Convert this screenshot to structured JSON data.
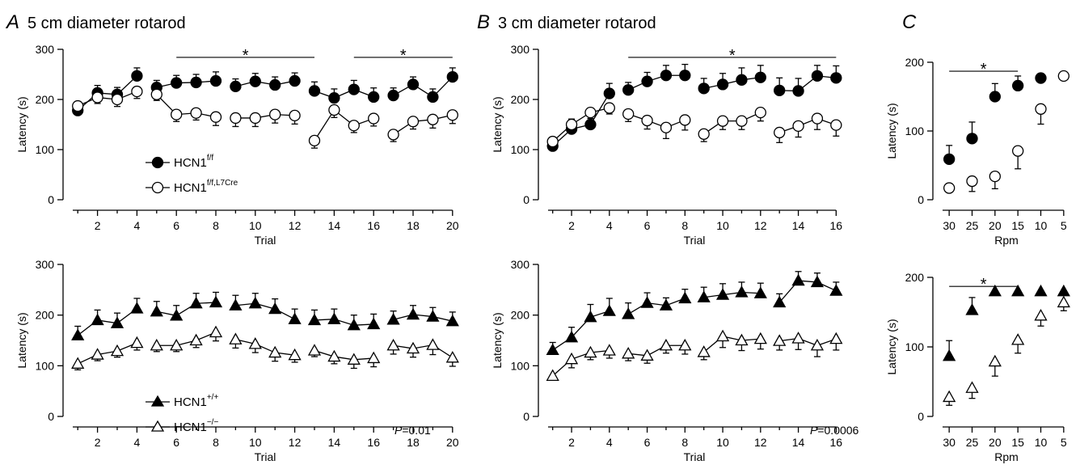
{
  "panels": {
    "A": {
      "letter": "A",
      "title": "5 cm diameter rotarod"
    },
    "B": {
      "letter": "B",
      "title": "3 cm diameter rotarod"
    },
    "C": {
      "letter": "C"
    }
  },
  "legend_top": {
    "s1": {
      "name": "HCN1",
      "sup": "f/f"
    },
    "s2": {
      "name": "HCN1",
      "sup": "f/f,L7Cre"
    }
  },
  "legend_bottom": {
    "s1": {
      "name": "HCN1",
      "sup": "+/+"
    },
    "s2": {
      "name": "HCN1",
      "sup": "−/−"
    }
  },
  "pvalues": {
    "A_bottom": {
      "label": "P",
      "value": "=0.01"
    },
    "B_bottom": {
      "label": "P",
      "value": "=0.0006"
    }
  },
  "chart_data": [
    {
      "id": "A_top",
      "type": "line",
      "xlabel": "Trial",
      "ylabel": "Latency (s)",
      "xlim": [
        0.5,
        20.5
      ],
      "ylim": [
        0,
        300
      ],
      "xticks": [
        2,
        4,
        6,
        8,
        10,
        12,
        14,
        16,
        18,
        20
      ],
      "xticklabels": [
        "2",
        "4",
        "6",
        "8",
        "10",
        "12",
        "14",
        "16",
        "18",
        "20"
      ],
      "yticks": [
        0,
        100,
        200,
        300
      ],
      "yticklabels": [
        "0",
        "100",
        "200",
        "300"
      ],
      "segments": [
        [
          1,
          4
        ],
        [
          5,
          8
        ],
        [
          9,
          12
        ],
        [
          13,
          16
        ],
        [
          17,
          20
        ]
      ],
      "series": [
        {
          "marker": "circle",
          "filled": true,
          "y": [
            178,
            213,
            210,
            247,
            224,
            233,
            234,
            237,
            226,
            236,
            229,
            237,
            217,
            203,
            220,
            205,
            208,
            230,
            205,
            245
          ],
          "err": [
            13,
            15,
            14,
            16,
            14,
            15,
            16,
            18,
            15,
            16,
            16,
            16,
            18,
            18,
            18,
            18,
            15,
            15,
            16,
            18
          ]
        },
        {
          "marker": "circle",
          "filled": false,
          "y": [
            187,
            204,
            200,
            216,
            210,
            170,
            173,
            165,
            163,
            163,
            170,
            168,
            118,
            179,
            148,
            162,
            130,
            156,
            160,
            169
          ],
          "err": [
            12,
            12,
            14,
            14,
            12,
            14,
            14,
            17,
            17,
            17,
            17,
            17,
            15,
            15,
            14,
            15,
            14,
            15,
            17,
            17
          ]
        }
      ],
      "significance": [
        {
          "from": 6,
          "to": 13,
          "y": 284,
          "label": "*"
        },
        {
          "from": 15,
          "to": 20,
          "y": 284,
          "label": "*"
        }
      ]
    },
    {
      "id": "A_bottom",
      "type": "line",
      "xlabel": "Trial",
      "ylabel": "Latency (s)",
      "xlim": [
        0.5,
        20.5
      ],
      "ylim": [
        0,
        300
      ],
      "xticks": [
        2,
        4,
        6,
        8,
        10,
        12,
        14,
        16,
        18,
        20
      ],
      "xticklabels": [
        "2",
        "4",
        "6",
        "8",
        "10",
        "12",
        "14",
        "16",
        "18",
        "20"
      ],
      "yticks": [
        0,
        100,
        200,
        300
      ],
      "yticklabels": [
        "0",
        "100",
        "200",
        "300"
      ],
      "segments": [
        [
          1,
          4
        ],
        [
          5,
          8
        ],
        [
          9,
          12
        ],
        [
          13,
          16
        ],
        [
          17,
          20
        ]
      ],
      "series": [
        {
          "marker": "triangle",
          "filled": true,
          "y": [
            160,
            190,
            184,
            213,
            207,
            199,
            223,
            225,
            219,
            223,
            212,
            192,
            190,
            192,
            180,
            182,
            191,
            201,
            197,
            188
          ],
          "err": [
            18,
            20,
            20,
            20,
            20,
            20,
            20,
            20,
            20,
            20,
            20,
            20,
            20,
            20,
            20,
            20,
            17,
            18,
            18,
            18
          ]
        },
        {
          "marker": "triangle",
          "filled": false,
          "y": [
            104,
            122,
            129,
            145,
            140,
            140,
            150,
            166,
            152,
            143,
            126,
            121,
            130,
            118,
            112,
            115,
            140,
            134,
            141,
            116
          ],
          "err": [
            12,
            12,
            12,
            14,
            12,
            12,
            14,
            17,
            17,
            17,
            17,
            14,
            12,
            14,
            17,
            17,
            17,
            17,
            19,
            17
          ]
        }
      ],
      "significance": []
    },
    {
      "id": "B_top",
      "type": "line",
      "xlabel": "Trial",
      "ylabel": "Latency (s)",
      "xlim": [
        0.5,
        16.5
      ],
      "ylim": [
        0,
        300
      ],
      "xticks": [
        2,
        4,
        6,
        8,
        10,
        12,
        14,
        16
      ],
      "xticklabels": [
        "2",
        "4",
        "6",
        "8",
        "10",
        "12",
        "14",
        "16"
      ],
      "yticks": [
        0,
        100,
        200,
        300
      ],
      "yticklabels": [
        "0",
        "100",
        "200",
        "300"
      ],
      "segments": [
        [
          1,
          4
        ],
        [
          5,
          8
        ],
        [
          9,
          12
        ],
        [
          13,
          16
        ]
      ],
      "series": [
        {
          "marker": "circle",
          "filled": true,
          "y": [
            107,
            141,
            150,
            212,
            219,
            236,
            248,
            248,
            222,
            230,
            239,
            244,
            218,
            217,
            247,
            243
          ],
          "err": [
            12,
            20,
            25,
            20,
            15,
            18,
            20,
            22,
            20,
            22,
            24,
            24,
            25,
            25,
            21,
            24
          ]
        },
        {
          "marker": "circle",
          "filled": false,
          "y": [
            116,
            150,
            174,
            183,
            171,
            158,
            144,
            159,
            131,
            157,
            157,
            174,
            134,
            147,
            162,
            149
          ],
          "err": [
            14,
            14,
            12,
            12,
            15,
            17,
            22,
            20,
            15,
            17,
            17,
            17,
            20,
            22,
            22,
            22
          ]
        }
      ],
      "significance": [
        {
          "from": 5,
          "to": 16,
          "y": 284,
          "label": "*"
        }
      ]
    },
    {
      "id": "B_bottom",
      "type": "line",
      "xlabel": "Trial",
      "ylabel": "Latency (s)",
      "xlim": [
        0.5,
        16.5
      ],
      "ylim": [
        0,
        300
      ],
      "xticks": [
        2,
        4,
        6,
        8,
        10,
        12,
        14,
        16
      ],
      "xticklabels": [
        "2",
        "4",
        "6",
        "8",
        "10",
        "12",
        "14",
        "16"
      ],
      "yticks": [
        0,
        100,
        200,
        300
      ],
      "yticklabels": [
        "0",
        "100",
        "200",
        "300"
      ],
      "segments": [
        [
          1,
          4
        ],
        [
          5,
          8
        ],
        [
          9,
          12
        ],
        [
          13,
          16
        ]
      ],
      "series": [
        {
          "marker": "triangle",
          "filled": true,
          "y": [
            131,
            156,
            196,
            208,
            202,
            224,
            219,
            233,
            235,
            240,
            245,
            243,
            225,
            268,
            265,
            248
          ],
          "err": [
            15,
            20,
            25,
            25,
            22,
            20,
            15,
            18,
            20,
            22,
            20,
            20,
            17,
            18,
            18,
            17
          ]
        },
        {
          "marker": "triangle",
          "filled": false,
          "y": [
            80,
            113,
            126,
            130,
            124,
            120,
            140,
            140,
            127,
            158,
            150,
            153,
            149,
            154,
            140,
            153
          ],
          "err": [
            7,
            17,
            14,
            15,
            14,
            15,
            15,
            17,
            15,
            22,
            20,
            20,
            18,
            22,
            22,
            22
          ]
        }
      ],
      "significance": []
    },
    {
      "id": "C_top",
      "type": "scatter",
      "xlabel": "Rpm",
      "ylabel": "Latency (s)",
      "xlim": [
        0.5,
        6.5
      ],
      "ylim": [
        0,
        200
      ],
      "xticks": [
        1,
        2,
        3,
        4,
        5,
        6
      ],
      "xticklabels": [
        "30",
        "25",
        "20",
        "15",
        "10",
        "5"
      ],
      "yticks": [
        0,
        100,
        200
      ],
      "yticklabels": [
        "0",
        "100",
        "200"
      ],
      "series": [
        {
          "marker": "circle",
          "filled": true,
          "x": [
            1,
            2,
            3,
            4,
            5
          ],
          "y": [
            59,
            89,
            150,
            166,
            177
          ],
          "err": [
            20,
            24,
            19,
            14,
            0
          ]
        },
        {
          "marker": "circle",
          "filled": false,
          "x": [
            1,
            2,
            3,
            4,
            5,
            6
          ],
          "y": [
            17,
            27,
            34,
            71,
            132,
            180
          ],
          "err": [
            0,
            15,
            18,
            26,
            22,
            0
          ]
        }
      ],
      "significance": [
        {
          "from": 1,
          "to": 4,
          "y": 187,
          "label": "*"
        }
      ]
    },
    {
      "id": "C_bottom",
      "type": "scatter",
      "xlabel": "Rpm",
      "ylabel": "Latency (s)",
      "xlim": [
        0.5,
        6.5
      ],
      "ylim": [
        0,
        200
      ],
      "xticks": [
        1,
        2,
        3,
        4,
        5,
        6
      ],
      "xticklabels": [
        "30",
        "25",
        "20",
        "15",
        "10",
        "5"
      ],
      "yticks": [
        0,
        100,
        200
      ],
      "yticklabels": [
        "0",
        "100",
        "200"
      ],
      "series": [
        {
          "marker": "triangle",
          "filled": true,
          "x": [
            1,
            2,
            3,
            4,
            5,
            6
          ],
          "y": [
            87,
            153,
            180,
            180,
            180,
            180
          ],
          "err": [
            22,
            18,
            0,
            0,
            0,
            0
          ]
        },
        {
          "marker": "triangle",
          "filled": false,
          "x": [
            1,
            2,
            3,
            4,
            5,
            6
          ],
          "y": [
            28,
            41,
            79,
            110,
            145,
            164
          ],
          "err": [
            12,
            15,
            21,
            19,
            15,
            12
          ]
        }
      ],
      "significance": [
        {
          "from": 1,
          "to": 4,
          "y": 187,
          "label": "*"
        }
      ]
    }
  ]
}
